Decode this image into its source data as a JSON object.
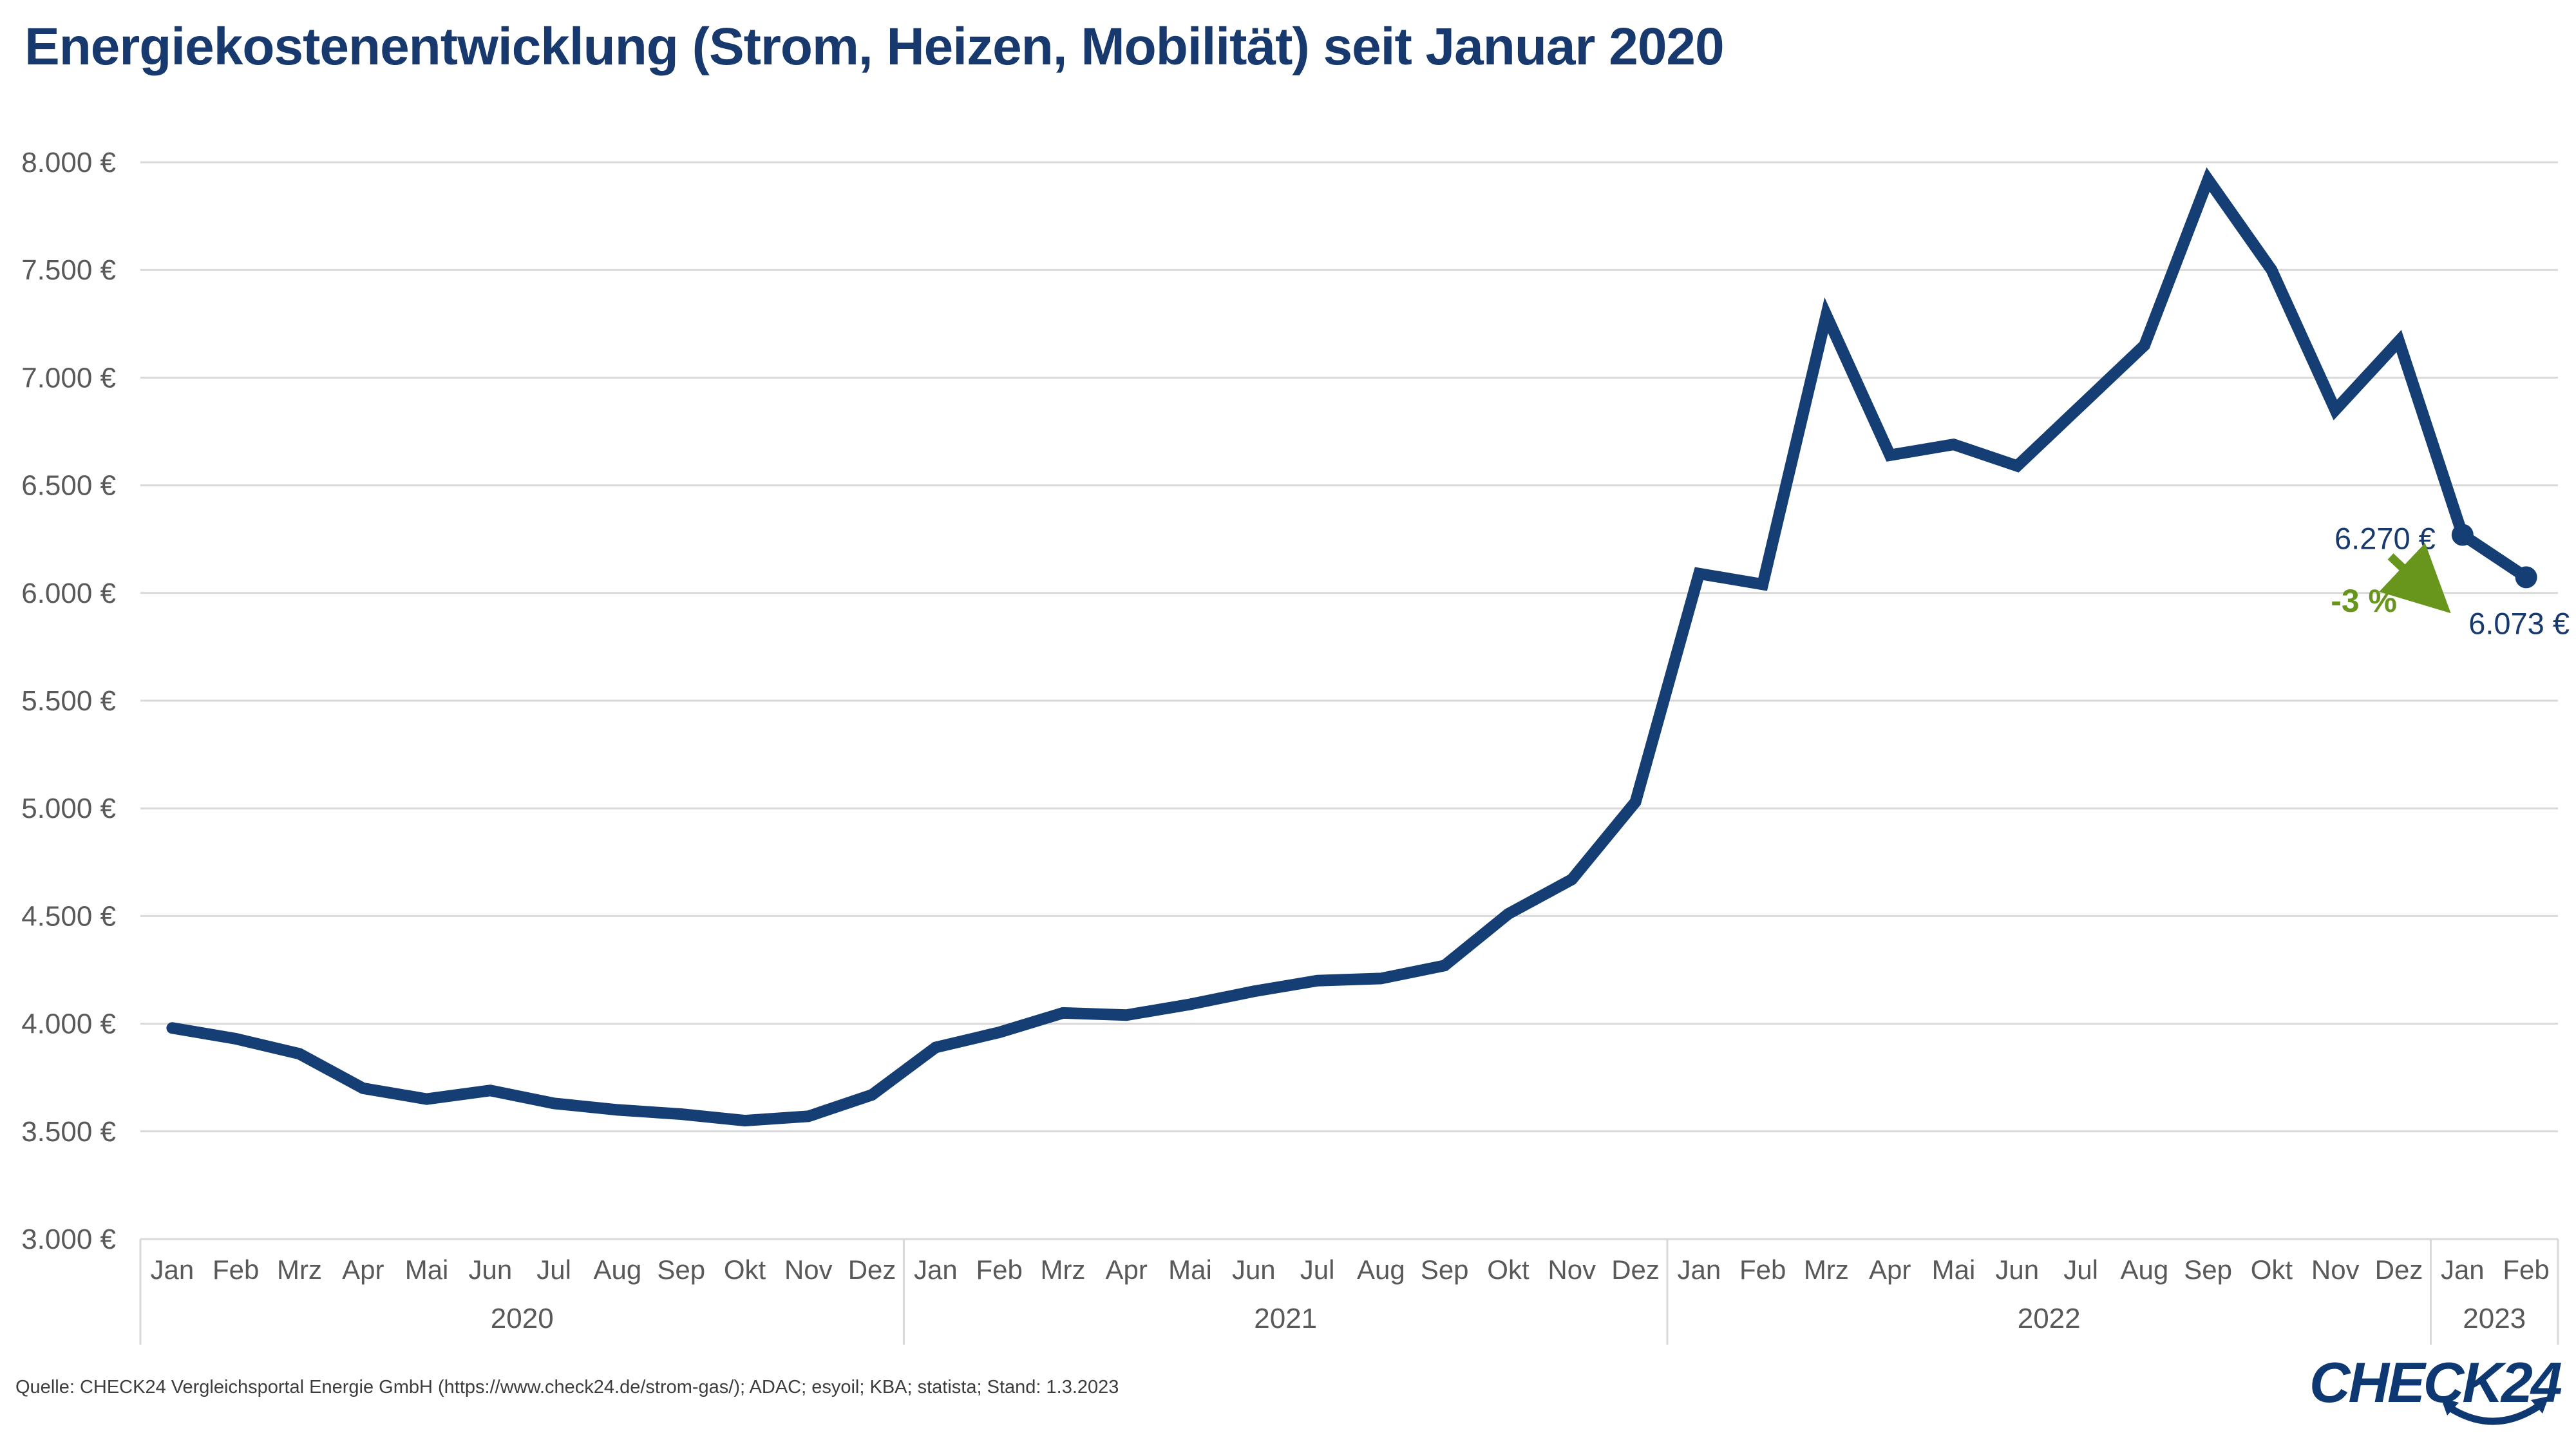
{
  "title": "Energiekostenentwicklung (Strom, Heizen, Mobilität) seit Januar 2020",
  "source_note": "Quelle: CHECK24 Vergleichsportal Energie GmbH (https://www.check24.de/strom-gas/); ADAC; esyoil; KBA; statista; Stand: 1.3.2023",
  "logo": {
    "text": "CHECK24"
  },
  "colors": {
    "line": "#153e74",
    "title_text": "#17396d",
    "annotation_text": "#17396d",
    "green": "#68961d",
    "grid": "#d9d9d9",
    "axis_text": "#595959",
    "source_text": "#3d3d3d",
    "logo_navy": "#0d3871",
    "background": "#ffffff"
  },
  "chart_data": {
    "type": "line",
    "unit": "€",
    "ylim": [
      3000,
      8000
    ],
    "ytick_step": 500,
    "ytick_labels": [
      "3.000 €",
      "3.500 €",
      "4.000 €",
      "4.500 €",
      "5.000 €",
      "5.500 €",
      "6.000 €",
      "6.500 €",
      "7.000 €",
      "7.500 €",
      "8.000 €"
    ],
    "grid": true,
    "legend": false,
    "month_labels": [
      "Jan",
      "Feb",
      "Mrz",
      "Apr",
      "Mai",
      "Jun",
      "Jul",
      "Aug",
      "Sep",
      "Okt",
      "Nov",
      "Dez"
    ],
    "year_groups": [
      {
        "year": "2020",
        "n_months": 12
      },
      {
        "year": "2021",
        "n_months": 12
      },
      {
        "year": "2022",
        "n_months": 12
      },
      {
        "year": "2023",
        "n_months": 2
      }
    ],
    "series": [
      {
        "values_eur": [
          3980,
          3930,
          3860,
          3700,
          3650,
          3690,
          3630,
          3600,
          3580,
          3550,
          3570,
          3670,
          3890,
          3960,
          4050,
          4040,
          4090,
          4150,
          4200,
          4210,
          4270,
          4510,
          4670,
          5030,
          6090,
          6040,
          7290,
          6640,
          6690,
          6590,
          6870,
          7150,
          7920,
          7500,
          6850,
          7170,
          6270,
          6073
        ]
      }
    ],
    "markers": {
      "point_indices": [
        36,
        37
      ]
    },
    "annotations": {
      "start_label": "6.270 €",
      "change_label": "-3 %",
      "end_label": "6.073 €"
    }
  }
}
